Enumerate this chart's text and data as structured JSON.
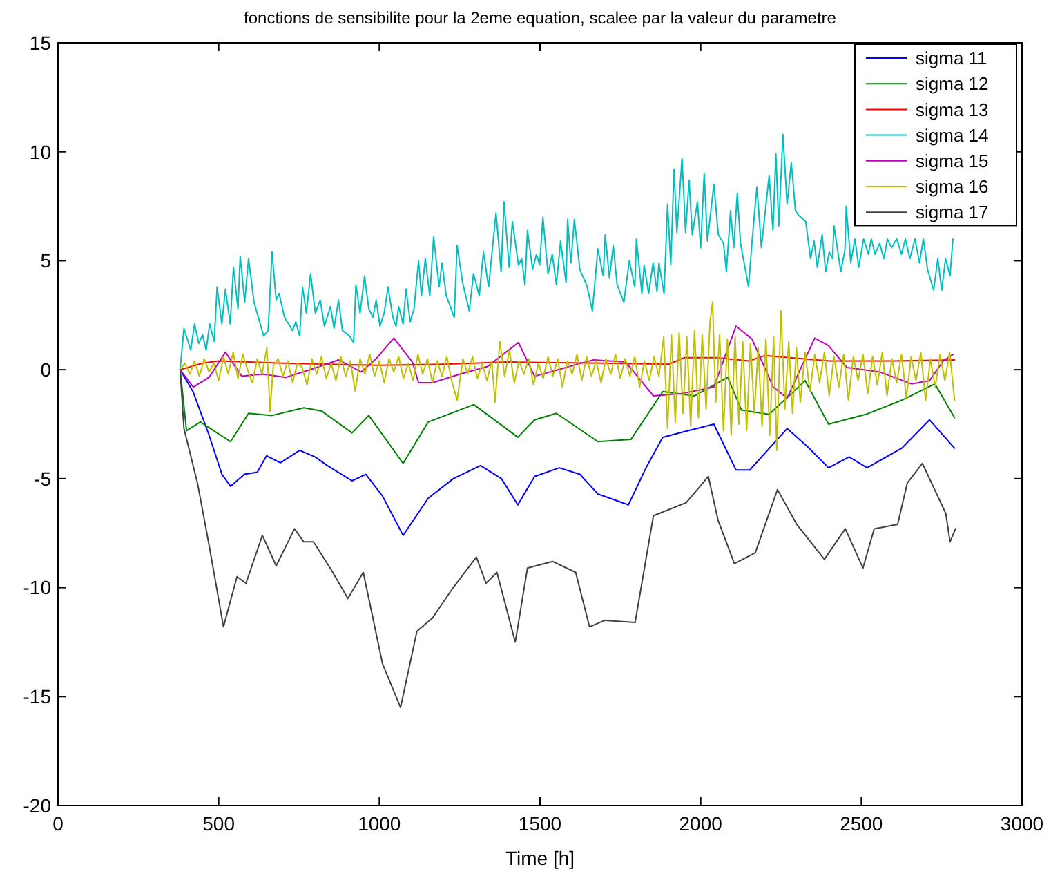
{
  "chart_data": {
    "type": "line",
    "title": "fonctions de sensibilite pour la 2eme equation, scalee par la valeur du parametre",
    "xlabel": "Time [h]",
    "xlim": [
      0,
      3000
    ],
    "ylim": [
      -20,
      15
    ],
    "xticks": [
      0,
      500,
      1000,
      1500,
      2000,
      2500,
      3000
    ],
    "yticks": [
      -20,
      -15,
      -10,
      -5,
      0,
      5,
      10,
      15
    ],
    "grid": false,
    "legend": "top right",
    "series": [
      {
        "name": "sigma 11",
        "color": "#0000ff",
        "x": [
          380,
          420,
          470,
          510,
          537,
          580,
          620,
          649,
          692,
          752,
          800,
          838,
          915,
          958,
          1010,
          1074,
          1152,
          1230,
          1315,
          1380,
          1431,
          1483,
          1560,
          1624,
          1680,
          1775,
          1830,
          1882,
          1960,
          2041,
          2110,
          2153,
          2269,
          2330,
          2398,
          2462,
          2518,
          2626,
          2712,
          2790
        ],
        "values": [
          0,
          -1,
          -3,
          -4.8,
          -5.35,
          -4.8,
          -4.7,
          -3.95,
          -4.27,
          -3.7,
          -4,
          -4.4,
          -5.1,
          -4.8,
          -5.8,
          -7.6,
          -5.9,
          -5,
          -4.4,
          -5,
          -6.2,
          -4.9,
          -4.5,
          -4.8,
          -5.7,
          -6.2,
          -4.5,
          -3.1,
          -2.8,
          -2.5,
          -4.6,
          -4.6,
          -2.7,
          -3.5,
          -4.5,
          -4,
          -4.5,
          -3.6,
          -2.3,
          -3.6
        ]
      },
      {
        "name": "sigma 12",
        "color": "#008000",
        "x": [
          380,
          400,
          443,
          537,
          593,
          666,
          765,
          821,
          915,
          967,
          1074,
          1152,
          1294,
          1431,
          1483,
          1551,
          1680,
          1783,
          1882,
          1981,
          2084,
          2127,
          2213,
          2325,
          2398,
          2514,
          2626,
          2729,
          2790
        ],
        "values": [
          0,
          -2.8,
          -2.4,
          -3.3,
          -2,
          -2.1,
          -1.75,
          -1.9,
          -2.9,
          -2.1,
          -4.3,
          -2.4,
          -1.6,
          -3.1,
          -2.3,
          -2,
          -3.3,
          -3.2,
          -1,
          -1.2,
          -0.35,
          -1.85,
          -2.05,
          -0.5,
          -2.5,
          -2.05,
          -1.4,
          -0.65,
          -2.2
        ]
      },
      {
        "name": "sigma 13",
        "color": "#ff0000",
        "x": [
          380,
          450,
          500,
          700,
          1000,
          1200,
          1400,
          1700,
          1900,
          1950,
          2050,
          2150,
          2200,
          2400,
          2600,
          2790
        ],
        "values": [
          0,
          0.3,
          0.4,
          0.3,
          0.2,
          0.25,
          0.35,
          0.3,
          0.25,
          0.55,
          0.55,
          0.4,
          0.65,
          0.4,
          0.4,
          0.45
        ]
      },
      {
        "name": "sigma 14",
        "color": "#00bfbf",
        "x": [
          380,
          392,
          413,
          425,
          438,
          450,
          461,
          472,
          486,
          495,
          510,
          521,
          536,
          546,
          560,
          567,
          581,
          593,
          610,
          640,
          654,
          666,
          679,
          688,
          705,
          730,
          740,
          752,
          761,
          773,
          786,
          801,
          816,
          829,
          848,
          859,
          873,
          885,
          907,
          920,
          927,
          940,
          954,
          967,
          980,
          990,
          1002,
          1015,
          1027,
          1042,
          1052,
          1060,
          1074,
          1083,
          1096,
          1108,
          1122,
          1131,
          1143,
          1157,
          1169,
          1186,
          1195,
          1208,
          1221,
          1233,
          1242,
          1259,
          1280,
          1293,
          1311,
          1324,
          1340,
          1363,
          1379,
          1388,
          1404,
          1414,
          1433,
          1443,
          1453,
          1461,
          1477,
          1489,
          1499,
          1509,
          1525,
          1538,
          1551,
          1564,
          1581,
          1586,
          1596,
          1607,
          1624,
          1646,
          1663,
          1680,
          1697,
          1703,
          1716,
          1728,
          1740,
          1761,
          1778,
          1795,
          1800,
          1817,
          1824,
          1838,
          1852,
          1864,
          1870,
          1886,
          1897,
          1907,
          1917,
          1926,
          1942,
          1953,
          1964,
          1974,
          1990,
          2000,
          2011,
          2021,
          2041,
          2055,
          2071,
          2080,
          2093,
          2103,
          2114,
          2124,
          2134,
          2149,
          2160,
          2175,
          2189,
          2213,
          2225,
          2234,
          2243,
          2256,
          2269,
          2282,
          2295,
          2304,
          2327,
          2342,
          2353,
          2363,
          2378,
          2389,
          2400,
          2410,
          2415,
          2436,
          2449,
          2453,
          2467,
          2480,
          2492,
          2507,
          2522,
          2531,
          2543,
          2557,
          2570,
          2581,
          2594,
          2610,
          2625,
          2637,
          2651,
          2667,
          2681,
          2693,
          2706,
          2725,
          2738,
          2750,
          2762,
          2776,
          2785
        ],
        "values": [
          0,
          1.9,
          0.9,
          2.1,
          1.2,
          1.6,
          0.9,
          2.1,
          1.3,
          3.8,
          2.1,
          3.7,
          2.1,
          4.7,
          2.8,
          5.2,
          3.1,
          5.1,
          3.1,
          1.55,
          1.8,
          5.4,
          3.2,
          3.5,
          2.4,
          1.8,
          2.2,
          1.55,
          3.8,
          2.6,
          4.4,
          2.6,
          3.2,
          2,
          2.9,
          1.9,
          3.2,
          1.8,
          1.55,
          1.25,
          3.9,
          2.6,
          4.3,
          2.8,
          2.4,
          3.2,
          2,
          2.6,
          3.8,
          2.4,
          2,
          2.9,
          2.1,
          3.7,
          2.2,
          2.8,
          5,
          3.4,
          5.1,
          3.4,
          6.1,
          3.8,
          4.9,
          3.4,
          2.9,
          2.4,
          5.7,
          4,
          2.7,
          4.4,
          3.4,
          5.4,
          3.8,
          7.2,
          4.5,
          7.7,
          4.7,
          6.8,
          4.8,
          5.1,
          3.9,
          6.4,
          4.6,
          5.3,
          4.8,
          7,
          4.4,
          5.3,
          3.9,
          5.9,
          4,
          6.9,
          4.9,
          6.9,
          4.6,
          3.85,
          2.7,
          5.55,
          4.3,
          6.2,
          4.2,
          5.7,
          3.9,
          3.1,
          5,
          3.8,
          6,
          3.5,
          4.8,
          3.5,
          4.9,
          3.6,
          4.9,
          3.5,
          7.6,
          4.8,
          9.2,
          6.3,
          9.7,
          6.3,
          8.7,
          6.2,
          7.7,
          5.6,
          9,
          5.9,
          8.5,
          6.2,
          5.8,
          4.5,
          7.3,
          5.6,
          8.1,
          5.8,
          5,
          3.8,
          5.9,
          8.4,
          5.6,
          8.9,
          6.4,
          9.9,
          6.6,
          10.8,
          7.6,
          9.5,
          7.3,
          7.1,
          6.8,
          5.1,
          5.9,
          4.7,
          6.2,
          4.5,
          5.4,
          5.1,
          6.6,
          4.5,
          5.5,
          7.5,
          4.9,
          6,
          4.7,
          6,
          5.3,
          6,
          5.3,
          5.8,
          5.1,
          6,
          5.6,
          6,
          5.3,
          6,
          5.1,
          6,
          4.9,
          6,
          4.6,
          3.65,
          5.1,
          3.65,
          5.1,
          4.3,
          6
        ]
      },
      {
        "name": "sigma 15",
        "color": "#bf00bf",
        "x": [
          380,
          421,
          470,
          521,
          572,
          636,
          709,
          795,
          873,
          944,
          990,
          1045,
          1103,
          1122,
          1165,
          1251,
          1337,
          1433,
          1483,
          1569,
          1640,
          1667,
          1767,
          1853,
          1939,
          2041,
          2110,
          2160,
          2226,
          2269,
          2355,
          2398,
          2455,
          2557,
          2656,
          2712,
          2755,
          2785
        ],
        "values": [
          0,
          -0.8,
          -0.35,
          0.8,
          -0.3,
          -0.2,
          -0.35,
          0.05,
          0.45,
          -0.1,
          0.5,
          1.45,
          0.35,
          -0.6,
          -0.6,
          -0.2,
          0.15,
          1.25,
          -0.3,
          0.05,
          0.35,
          0.45,
          0.35,
          -1.2,
          -1.1,
          -0.8,
          2,
          1.4,
          -0.8,
          -1.3,
          1.45,
          1.1,
          0.1,
          -0.1,
          -0.65,
          -0.5,
          0.4,
          0.7
        ]
      },
      {
        "name": "sigma 16",
        "color": "#bfbf00",
        "x": [
          380,
          395,
          410,
          425,
          440,
          455,
          470,
          485,
          500,
          515,
          530,
          545,
          560,
          575,
          590,
          605,
          620,
          635,
          650,
          660,
          670,
          685,
          700,
          715,
          730,
          745,
          760,
          775,
          790,
          805,
          820,
          835,
          850,
          865,
          880,
          895,
          910,
          925,
          940,
          955,
          970,
          985,
          1000,
          1015,
          1030,
          1045,
          1060,
          1075,
          1090,
          1105,
          1120,
          1135,
          1150,
          1165,
          1180,
          1195,
          1210,
          1225,
          1242,
          1260,
          1275,
          1290,
          1305,
          1320,
          1335,
          1350,
          1360,
          1375,
          1390,
          1405,
          1420,
          1435,
          1450,
          1465,
          1480,
          1495,
          1510,
          1525,
          1540,
          1555,
          1570,
          1585,
          1600,
          1615,
          1630,
          1645,
          1660,
          1675,
          1690,
          1705,
          1720,
          1735,
          1750,
          1765,
          1780,
          1795,
          1810,
          1825,
          1840,
          1855,
          1870,
          1885,
          1897,
          1909,
          1921,
          1933,
          1945,
          1957,
          1969,
          1981,
          1993,
          2005,
          2017,
          2029,
          2037,
          2047,
          2059,
          2071,
          2083,
          2095,
          2107,
          2119,
          2131,
          2143,
          2155,
          2167,
          2179,
          2191,
          2203,
          2215,
          2227,
          2237,
          2250,
          2262,
          2274,
          2286,
          2298,
          2310,
          2325,
          2340,
          2355,
          2370,
          2385,
          2400,
          2415,
          2430,
          2445,
          2460,
          2475,
          2490,
          2505,
          2520,
          2535,
          2550,
          2565,
          2580,
          2595,
          2610,
          2625,
          2640,
          2655,
          2670,
          2685,
          2700,
          2715,
          2730,
          2745,
          2760,
          2775,
          2790
        ],
        "values": [
          0,
          0.3,
          -0.2,
          0.4,
          -0.3,
          0.5,
          -0.1,
          0.3,
          -0.5,
          0.6,
          -0.2,
          0.8,
          -0.4,
          0.7,
          0,
          -0.6,
          0.5,
          -0.2,
          1,
          -1.9,
          0.2,
          0.5,
          -0.3,
          0.4,
          -0.6,
          0.3,
          0.1,
          -0.7,
          0.5,
          -0.2,
          0.6,
          -0.4,
          0.3,
          -0.5,
          0.6,
          -0.3,
          0.4,
          -1,
          0.5,
          -0.2,
          0.7,
          -0.3,
          0.4,
          -0.6,
          0.5,
          -0.1,
          0.6,
          -0.4,
          0.3,
          -0.5,
          0.7,
          -0.2,
          0.5,
          -0.6,
          0.4,
          -0.3,
          0.6,
          -0.5,
          -1.4,
          0.5,
          -0.2,
          0.6,
          -0.4,
          0.3,
          -0.5,
          0.4,
          -1.5,
          1.3,
          -0.3,
          0.9,
          -0.6,
          0.4,
          -0.2,
          0.5,
          -0.7,
          0.3,
          -0.4,
          0.6,
          -0.3,
          0.5,
          -0.8,
          0.4,
          -0.2,
          0.7,
          -0.5,
          0.6,
          -0.3,
          0.4,
          -0.6,
          0.5,
          -0.2,
          0.7,
          -0.4,
          0.5,
          -0.3,
          0.6,
          -0.8,
          0.4,
          -0.5,
          0.6,
          -0.3,
          1.5,
          -2.7,
          1.6,
          -2.4,
          1.7,
          -2,
          1.5,
          -2.6,
          1.8,
          -2.2,
          1.6,
          -1.8,
          2.2,
          3.1,
          -1.5,
          1.6,
          -2.8,
          1.4,
          -3,
          1.5,
          -2.5,
          1.3,
          -2.8,
          1.2,
          -2,
          1,
          -2.6,
          1.4,
          -3,
          1.5,
          -3.7,
          2.7,
          -1.8,
          1.3,
          -2,
          1,
          -1.5,
          0.8,
          -1,
          0.7,
          -0.6,
          0.8,
          -1.2,
          0.6,
          -0.8,
          0.7,
          -1.4,
          0.6,
          -0.5,
          0.7,
          -1.1,
          0.6,
          -0.7,
          0.8,
          -1.2,
          0.5,
          -0.6,
          0.7,
          -1.3,
          0.6,
          -0.5,
          0.8,
          -1.4,
          0.5,
          -0.8,
          0.7,
          -0.5,
          0.8,
          -1.4
        ]
      },
      {
        "name": "sigma 17",
        "color": "#404040",
        "x": [
          380,
          392,
          434,
          472,
          515,
          557,
          585,
          636,
          679,
          736,
          765,
          795,
          851,
          902,
          950,
          1010,
          1066,
          1117,
          1165,
          1225,
          1302,
          1332,
          1366,
          1423,
          1461,
          1539,
          1611,
          1654,
          1702,
          1796,
          1853,
          1955,
          2024,
          2054,
          2105,
          2170,
          2239,
          2299,
          2385,
          2450,
          2505,
          2540,
          2613,
          2643,
          2690,
          2763,
          2776,
          2793
        ],
        "values": [
          0,
          -2.7,
          -5.2,
          -8.2,
          -11.8,
          -9.5,
          -9.8,
          -7.6,
          -9,
          -7.3,
          -7.9,
          -7.9,
          -9.2,
          -10.5,
          -9.3,
          -13.5,
          -15.5,
          -12,
          -11.4,
          -10.1,
          -8.6,
          -9.8,
          -9.3,
          -12.5,
          -9.1,
          -8.8,
          -9.3,
          -11.8,
          -11.5,
          -11.6,
          -6.7,
          -6.1,
          -4.9,
          -6.9,
          -8.9,
          -8.4,
          -5.5,
          -7.1,
          -8.7,
          -7.3,
          -9.1,
          -7.3,
          -7.1,
          -5.2,
          -4.3,
          -6.6,
          -7.9,
          -7.3
        ]
      }
    ]
  }
}
